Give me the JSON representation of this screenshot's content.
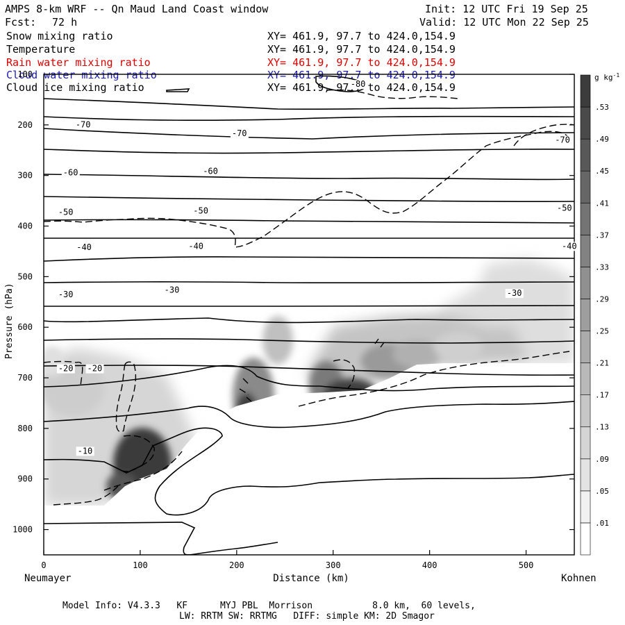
{
  "header": {
    "title": "AMPS 8-km WRF -- Qn Maud Land Coast window",
    "init": "Init: 12 UTC Fri 19 Sep 25",
    "fcst_label": "Fcst:",
    "fcst_value": "72 h",
    "valid": "Valid: 12 UTC Mon 22 Sep 25"
  },
  "legend": [
    {
      "name": "Snow mixing ratio",
      "xy": "XY= 461.9, 97.7 to 424.0,154.9",
      "color": "#000000"
    },
    {
      "name": "Temperature",
      "xy": "XY= 461.9, 97.7 to 424.0,154.9",
      "color": "#000000"
    },
    {
      "name": "Rain water mixing ratio",
      "xy": "XY= 461.9, 97.7 to 424.0,154.9",
      "color": "#dd0000"
    },
    {
      "name": "Cloud water mixing ratio",
      "xy": "XY= 461.9, 97.7 to 424.0,154.9",
      "color": "#1a1ab0"
    },
    {
      "name": "Cloud ice mixing ratio",
      "xy": "XY= 461.9, 97.7 to 424.0,154.9",
      "color": "#000000"
    }
  ],
  "footer": {
    "line1": "Model Info: V4.3.3   KF      MYJ PBL  Morrison           8.0 km,  60 levels,",
    "line2": "LW: RRTM SW: RRTMG   DIFF: simple KM: 2D Smagor"
  },
  "chart_data": {
    "type": "cross-section",
    "xlabel": "Distance (km)",
    "ylabel": "Pressure (hPa)",
    "x_left_label": "Neumayer",
    "x_right_label": "Kohnen",
    "xlim": [
      0,
      550
    ],
    "ylim": [
      1050,
      100
    ],
    "x_ticks": [
      0,
      100,
      200,
      300,
      400,
      500
    ],
    "y_ticks": [
      100,
      200,
      300,
      400,
      500,
      600,
      700,
      800,
      900,
      1000
    ],
    "colorbar": {
      "unit_label": "g kg",
      "unit_exp": "-1",
      "ticks": [
        ".01",
        ".05",
        ".09",
        ".13",
        ".17",
        ".21",
        ".25",
        ".29",
        ".33",
        ".37",
        ".41",
        ".45",
        ".49",
        ".53"
      ]
    },
    "temperature_contour_labels": [
      {
        "text": "-80",
        "x": 318,
        "p": 125
      },
      {
        "text": "-70",
        "x": 33,
        "p": 205
      },
      {
        "text": "-70",
        "x": 195,
        "p": 222
      },
      {
        "text": "-70",
        "x": 530,
        "p": 235
      },
      {
        "text": "-60",
        "x": 20,
        "p": 300
      },
      {
        "text": "-60",
        "x": 165,
        "p": 297
      },
      {
        "text": "-50",
        "x": 15,
        "p": 378
      },
      {
        "text": "-50",
        "x": 155,
        "p": 375
      },
      {
        "text": "-50",
        "x": 532,
        "p": 370
      },
      {
        "text": "-40",
        "x": 34,
        "p": 447
      },
      {
        "text": "-40",
        "x": 150,
        "p": 445
      },
      {
        "text": "-40",
        "x": 537,
        "p": 445
      },
      {
        "text": "-30",
        "x": 15,
        "p": 541
      },
      {
        "text": "-30",
        "x": 125,
        "p": 532
      },
      {
        "text": "-30",
        "x": 480,
        "p": 538
      },
      {
        "text": "-20",
        "x": 15,
        "p": 687
      },
      {
        "text": "-20",
        "x": 45,
        "p": 687
      },
      {
        "text": "-10",
        "x": 35,
        "p": 850
      }
    ]
  }
}
